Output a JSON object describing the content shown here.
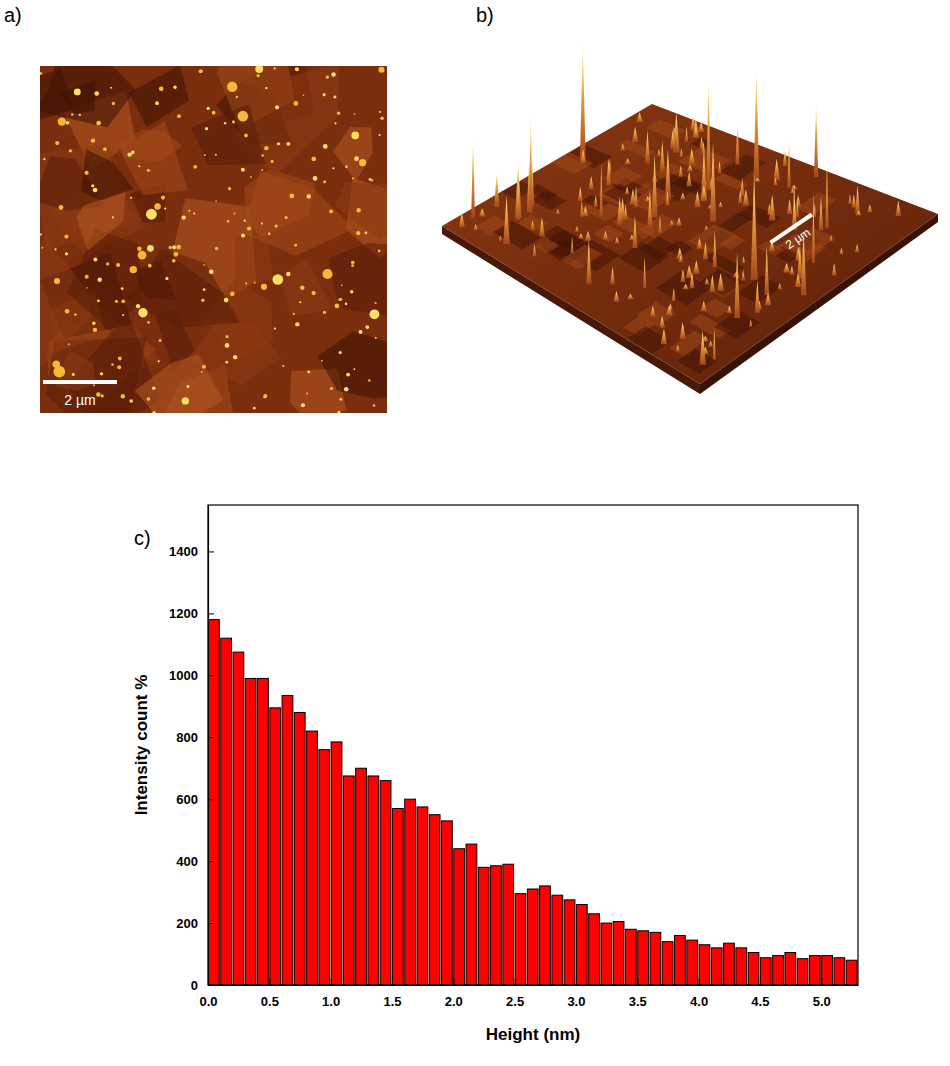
{
  "panel_a": {
    "label": "a)",
    "scale_bar": "2 µm"
  },
  "panel_b": {
    "label": "b)",
    "scale_bar": "2 µm"
  },
  "chart_data": {
    "type": "histogram",
    "label": "c)",
    "bins": [
      0,
      0.1,
      0.2,
      0.3,
      0.4,
      0.5,
      0.6,
      0.7,
      0.8,
      0.9,
      1.0,
      1.1,
      1.2,
      1.3,
      1.4,
      1.5,
      1.6,
      1.7,
      1.8,
      1.9,
      2.0,
      2.1,
      2.2,
      2.3,
      2.4,
      2.5,
      2.6,
      2.7,
      2.8,
      2.9,
      3.0,
      3.1,
      3.2,
      3.3,
      3.4,
      3.5,
      3.6,
      3.7,
      3.8,
      3.9,
      4.0,
      4.1,
      4.2,
      4.3,
      4.4,
      4.5,
      4.6,
      4.7,
      4.8,
      4.9,
      5.0,
      5.1,
      5.2,
      5.3
    ],
    "counts": [
      1180,
      1120,
      1075,
      990,
      990,
      895,
      935,
      880,
      820,
      760,
      785,
      675,
      700,
      675,
      660,
      570,
      600,
      575,
      550,
      530,
      440,
      455,
      380,
      385,
      390,
      295,
      310,
      320,
      290,
      275,
      260,
      230,
      200,
      205,
      180,
      175,
      170,
      140,
      160,
      145,
      130,
      120,
      135,
      120,
      105,
      88,
      95,
      105,
      85,
      95,
      95,
      88,
      80
    ],
    "color": "#ff0000",
    "xlabel": "Height (nm)",
    "ylabel": "Intensity count %",
    "xlim": [
      0,
      5.3
    ],
    "ylim": [
      0,
      1550
    ],
    "xticks": [
      {
        "value": 0,
        "label": "0.0"
      },
      {
        "value": 0.5,
        "label": "0.5"
      },
      {
        "value": 1,
        "label": "1.0"
      },
      {
        "value": 1.5,
        "label": "1.5"
      },
      {
        "value": 2,
        "label": "2.0"
      },
      {
        "value": 2.5,
        "label": "2.5"
      },
      {
        "value": 3,
        "label": "3.0"
      },
      {
        "value": 3.5,
        "label": "3.5"
      },
      {
        "value": 4,
        "label": "4.0"
      },
      {
        "value": 4.5,
        "label": "4.5"
      },
      {
        "value": 5,
        "label": "5.0"
      }
    ],
    "yticks": [
      0,
      200,
      400,
      600,
      800,
      1000,
      1200,
      1400
    ]
  }
}
